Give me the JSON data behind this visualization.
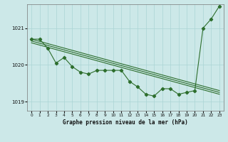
{
  "xlabel": "Graphe pression niveau de la mer (hPa)",
  "bg_color": "#cce8e8",
  "line_color": "#2d6e2d",
  "ylim": [
    1018.75,
    1021.65
  ],
  "xlim": [
    -0.5,
    23.5
  ],
  "yticks": [
    1019,
    1020,
    1021
  ],
  "xticks": [
    0,
    1,
    2,
    3,
    4,
    5,
    6,
    7,
    8,
    9,
    10,
    11,
    12,
    13,
    14,
    15,
    16,
    17,
    18,
    19,
    20,
    21,
    22,
    23
  ],
  "series1_x": [
    0,
    1,
    2,
    3,
    4,
    5,
    6,
    7,
    8,
    9,
    10,
    11,
    12,
    13,
    14,
    15,
    16,
    17,
    18,
    19,
    20,
    21,
    22,
    23
  ],
  "series1_y": [
    1020.7,
    1020.7,
    1020.45,
    1020.05,
    1020.2,
    1019.95,
    1019.8,
    1019.75,
    1019.85,
    1019.85,
    1019.85,
    1019.85,
    1019.55,
    1019.4,
    1019.2,
    1019.15,
    1019.35,
    1019.35,
    1019.2,
    1019.25,
    1019.3,
    1021.0,
    1021.25,
    1021.6
  ],
  "trend1_x": [
    0,
    23
  ],
  "trend1_y": [
    1020.7,
    1019.3
  ],
  "trend2_x": [
    0,
    23
  ],
  "trend2_y": [
    1020.6,
    1019.2
  ],
  "trend3_x": [
    0,
    23
  ],
  "trend3_y": [
    1020.65,
    1019.25
  ]
}
